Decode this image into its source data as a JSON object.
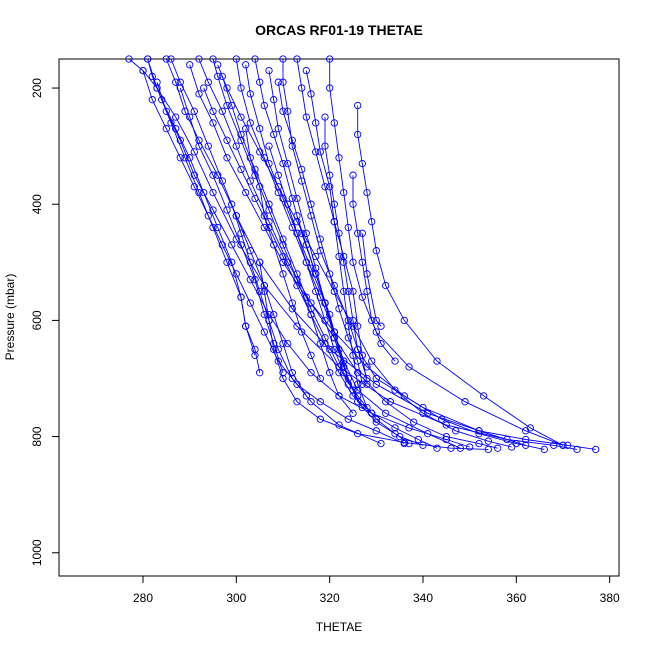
{
  "chart_data": {
    "type": "line",
    "title": "ORCAS RF01-19 THETAE",
    "xlabel": "THETAE",
    "ylabel": "Pressure (mbar)",
    "xlim": [
      262,
      382
    ],
    "ylim": [
      1040,
      150
    ],
    "y_reversed": true,
    "x_ticks": [
      280,
      300,
      320,
      340,
      360,
      380
    ],
    "y_ticks": [
      200,
      400,
      600,
      800,
      1000
    ],
    "grid": false,
    "legend": "none",
    "color": "#0000ff",
    "marker": "open-circle",
    "series": [
      {
        "x": [
          277,
          280,
          283,
          287,
          291,
          295,
          300,
          306,
          313,
          322,
          333,
          345,
          358,
          368,
          373
        ],
        "y": [
          150,
          170,
          200,
          250,
          310,
          380,
          460,
          540,
          610,
          680,
          740,
          780,
          805,
          815,
          822
        ]
      },
      {
        "x": [
          285,
          287,
          289,
          292,
          296,
          300,
          305,
          312,
          320,
          330,
          341,
          352,
          362,
          371,
          377
        ],
        "y": [
          150,
          190,
          240,
          290,
          350,
          420,
          500,
          580,
          650,
          710,
          760,
          790,
          805,
          815,
          822
        ]
      },
      {
        "x": [
          292,
          294,
          297,
          300,
          303,
          307,
          311,
          316,
          321,
          326,
          332,
          338,
          345,
          352,
          356
        ],
        "y": [
          150,
          190,
          240,
          300,
          360,
          430,
          500,
          570,
          630,
          690,
          740,
          775,
          800,
          812,
          820
        ]
      },
      {
        "x": [
          304,
          305,
          306,
          308,
          310,
          312,
          314,
          317,
          320,
          322,
          324,
          326,
          330,
          335,
          340
        ],
        "y": [
          150,
          190,
          230,
          280,
          330,
          390,
          450,
          520,
          590,
          650,
          700,
          740,
          775,
          800,
          815
        ]
      },
      {
        "x": [
          310,
          310,
          311,
          312,
          314,
          316,
          318,
          321,
          324,
          326,
          328
        ],
        "y": [
          150,
          190,
          240,
          300,
          360,
          420,
          480,
          540,
          600,
          650,
          700
        ]
      },
      {
        "x": [
          281,
          282,
          284,
          287,
          290,
          293,
          296,
          299,
          301,
          302,
          304,
          305
        ],
        "y": [
          150,
          180,
          220,
          270,
          320,
          380,
          440,
          500,
          560,
          610,
          650,
          690
        ]
      },
      {
        "x": [
          281,
          283,
          286,
          289,
          292,
          295,
          298,
          301,
          302,
          304
        ],
        "y": [
          150,
          200,
          260,
          320,
          380,
          440,
          500,
          560,
          610,
          660
        ]
      },
      {
        "x": [
          286,
          288,
          291,
          294,
          297,
          300,
          303,
          306,
          308,
          310,
          312,
          315
        ],
        "y": [
          150,
          190,
          240,
          300,
          360,
          420,
          480,
          540,
          590,
          640,
          690,
          730
        ]
      },
      {
        "x": [
          295,
          296,
          298,
          301,
          304,
          307,
          310,
          313,
          316,
          318,
          320,
          322,
          325
        ],
        "y": [
          150,
          180,
          230,
          290,
          350,
          410,
          470,
          530,
          590,
          640,
          690,
          730,
          760
        ]
      },
      {
        "x": [
          300,
          301,
          303,
          306,
          309,
          312,
          315,
          318,
          321,
          323,
          324
        ],
        "y": [
          150,
          200,
          260,
          320,
          380,
          440,
          500,
          560,
          620,
          670,
          710
        ]
      },
      {
        "x": [
          313,
          314,
          315,
          317,
          319,
          321,
          323,
          325,
          326,
          327,
          328
        ],
        "y": [
          150,
          200,
          250,
          310,
          370,
          430,
          490,
          550,
          610,
          660,
          710
        ]
      },
      {
        "x": [
          320,
          320,
          321,
          322,
          323,
          324,
          325,
          327,
          330,
          337,
          349,
          362,
          370
        ],
        "y": [
          150,
          200,
          260,
          320,
          380,
          440,
          500,
          560,
          620,
          680,
          740,
          790,
          815
        ]
      },
      {
        "x": [
          326,
          326,
          327,
          328,
          329,
          330,
          332,
          336,
          343,
          353,
          363,
          370
        ],
        "y": [
          230,
          280,
          330,
          380,
          430,
          480,
          540,
          600,
          670,
          730,
          785,
          815
        ]
      },
      {
        "x": [
          288,
          290,
          292,
          295,
          298,
          301,
          304,
          306,
          308,
          310
        ],
        "y": [
          200,
          250,
          300,
          350,
          410,
          470,
          530,
          590,
          640,
          690
        ]
      },
      {
        "x": [
          297,
          299,
          301,
          304,
          307,
          310,
          313,
          316,
          319,
          322,
          325,
          327
        ],
        "y": [
          180,
          230,
          280,
          340,
          400,
          460,
          520,
          580,
          630,
          680,
          720,
          750
        ]
      },
      {
        "x": [
          307,
          308,
          309,
          311,
          313,
          315,
          317,
          319,
          321,
          323
        ],
        "y": [
          170,
          220,
          270,
          330,
          390,
          450,
          510,
          570,
          630,
          680
        ]
      },
      {
        "x": [
          315,
          316,
          317,
          318,
          320,
          321,
          322,
          323,
          324,
          325,
          326,
          328
        ],
        "y": [
          170,
          210,
          260,
          310,
          370,
          430,
          490,
          550,
          610,
          660,
          710,
          750
        ]
      },
      {
        "x": [
          280,
          282,
          285,
          288,
          291,
          294,
          297,
          300,
          303,
          306,
          309,
          313,
          318,
          324,
          330,
          336
        ],
        "y": [
          170,
          220,
          270,
          320,
          370,
          420,
          470,
          520,
          570,
          620,
          670,
          710,
          740,
          770,
          790,
          812
        ]
      },
      {
        "x": [
          290,
          292,
          295,
          298,
          302,
          306,
          310,
          315,
          321,
          328,
          336,
          344,
          352,
          360,
          366
        ],
        "y": [
          160,
          210,
          260,
          320,
          380,
          440,
          500,
          560,
          620,
          680,
          730,
          770,
          795,
          812,
          822
        ]
      },
      {
        "x": [
          296,
          298,
          301,
          305,
          309,
          313,
          317,
          321,
          325,
          329,
          334,
          340,
          347,
          354,
          359
        ],
        "y": [
          160,
          200,
          250,
          310,
          370,
          430,
          490,
          550,
          610,
          670,
          720,
          760,
          790,
          808,
          818
        ]
      },
      {
        "x": [
          302,
          303,
          305,
          307,
          310,
          313,
          316,
          319,
          321,
          323,
          325
        ],
        "y": [
          160,
          210,
          270,
          330,
          390,
          450,
          510,
          570,
          630,
          680,
          720
        ]
      },
      {
        "x": [
          283,
          285,
          288,
          291,
          295,
          299,
          303,
          307,
          311,
          316,
          322,
          329,
          337,
          345,
          350
        ],
        "y": [
          190,
          240,
          290,
          350,
          410,
          470,
          530,
          590,
          640,
          690,
          730,
          760,
          785,
          805,
          818
        ]
      },
      {
        "x": [
          293,
          295,
          298,
          301,
          304,
          307,
          310,
          313,
          316,
          319,
          322,
          325,
          329,
          334,
          339,
          343
        ],
        "y": [
          200,
          240,
          290,
          340,
          390,
          440,
          490,
          540,
          590,
          640,
          690,
          730,
          760,
          785,
          805,
          820
        ]
      },
      {
        "x": [
          309,
          310,
          312,
          314,
          316,
          318,
          320,
          322,
          324,
          326,
          327
        ],
        "y": [
          190,
          240,
          290,
          340,
          400,
          460,
          520,
          580,
          630,
          670,
          710
        ]
      },
      {
        "x": [
          319,
          319,
          320,
          321,
          322,
          323,
          324,
          325,
          326,
          330,
          340,
          352,
          362
        ],
        "y": [
          250,
          300,
          350,
          400,
          450,
          500,
          550,
          600,
          650,
          700,
          750,
          790,
          815
        ]
      },
      {
        "x": [
          325,
          325,
          326,
          327,
          328,
          329,
          331,
          334
        ],
        "y": [
          350,
          400,
          450,
          500,
          550,
          600,
          640,
          670
        ]
      },
      {
        "x": [
          302,
          303,
          305,
          306,
          308,
          310,
          312,
          314,
          316,
          318
        ],
        "y": [
          270,
          320,
          370,
          420,
          470,
          520,
          570,
          620,
          660,
          700
        ]
      },
      {
        "x": [
          307,
          309,
          311,
          313,
          315,
          317,
          319,
          321,
          323,
          326,
          330,
          334,
          337
        ],
        "y": [
          300,
          350,
          400,
          450,
          500,
          550,
          600,
          650,
          690,
          730,
          770,
          795,
          812
        ]
      },
      {
        "x": [
          299,
          301,
          303,
          305,
          307,
          309,
          312,
          316,
          322,
          331
        ],
        "y": [
          400,
          450,
          500,
          550,
          600,
          650,
          700,
          740,
          780,
          812
        ]
      },
      {
        "x": [
          313,
          315,
          317,
          319,
          321,
          323,
          326,
          332,
          341,
          348
        ],
        "y": [
          420,
          470,
          520,
          570,
          620,
          670,
          720,
          760,
          795,
          820
        ]
      },
      {
        "x": [
          305,
          306,
          307,
          308,
          310,
          313,
          318,
          326,
          336,
          346,
          354
        ],
        "y": [
          500,
          550,
          600,
          650,
          700,
          740,
          770,
          795,
          810,
          820,
          822
        ]
      },
      {
        "x": [
          327,
          328,
          330,
          331
        ],
        "y": [
          450,
          520,
          600,
          610
        ]
      }
    ]
  }
}
